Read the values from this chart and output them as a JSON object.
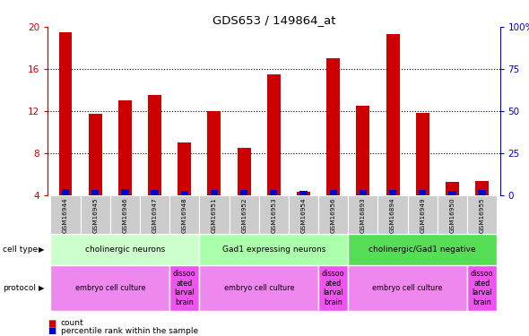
{
  "title": "GDS653 / 149864_at",
  "samples": [
    "GSM16944",
    "GSM16945",
    "GSM16946",
    "GSM16947",
    "GSM16948",
    "GSM16951",
    "GSM16952",
    "GSM16953",
    "GSM16954",
    "GSM16956",
    "GSM16893",
    "GSM16894",
    "GSM16949",
    "GSM16950",
    "GSM16955"
  ],
  "counts": [
    19.5,
    11.7,
    13.0,
    13.5,
    9.0,
    12.0,
    8.5,
    15.5,
    4.3,
    17.0,
    12.5,
    19.3,
    11.8,
    5.2,
    5.3
  ],
  "percentile_heights": [
    0.55,
    0.45,
    0.55,
    0.5,
    0.4,
    0.5,
    0.45,
    0.5,
    0.4,
    0.5,
    0.5,
    0.5,
    0.5,
    0.4,
    0.5
  ],
  "bar_bottom": 4.0,
  "ylim_left": [
    4,
    20
  ],
  "ylim_right": [
    0,
    100
  ],
  "yticks_left": [
    4,
    8,
    12,
    16,
    20
  ],
  "yticks_right": [
    0,
    25,
    50,
    75,
    100
  ],
  "left_axis_color": "#cc0000",
  "right_axis_color": "#0000cc",
  "bar_color_red": "#cc0000",
  "bar_color_blue": "#0000cc",
  "cell_type_groups": [
    {
      "label": "cholinergic neurons",
      "start": 0,
      "end": 5,
      "color": "#ccffcc"
    },
    {
      "label": "Gad1 expressing neurons",
      "start": 5,
      "end": 10,
      "color": "#aaffaa"
    },
    {
      "label": "cholinergic/Gad1 negative",
      "start": 10,
      "end": 15,
      "color": "#55dd55"
    }
  ],
  "protocol_groups": [
    {
      "label": "embryo cell culture",
      "start": 0,
      "end": 4,
      "color": "#ee88ee"
    },
    {
      "label": "dissoo\nated\nlarval\nbrain",
      "start": 4,
      "end": 5,
      "color": "#ee55ee"
    },
    {
      "label": "embryo cell culture",
      "start": 5,
      "end": 9,
      "color": "#ee88ee"
    },
    {
      "label": "dissoo\nated\nlarval\nbrain",
      "start": 9,
      "end": 10,
      "color": "#ee55ee"
    },
    {
      "label": "embryo cell culture",
      "start": 10,
      "end": 14,
      "color": "#ee88ee"
    },
    {
      "label": "dissoo\nated\nlarval\nbrain",
      "start": 14,
      "end": 15,
      "color": "#ee55ee"
    }
  ],
  "tick_bg_color": "#cccccc",
  "grid_ticks": [
    8,
    12,
    16
  ]
}
